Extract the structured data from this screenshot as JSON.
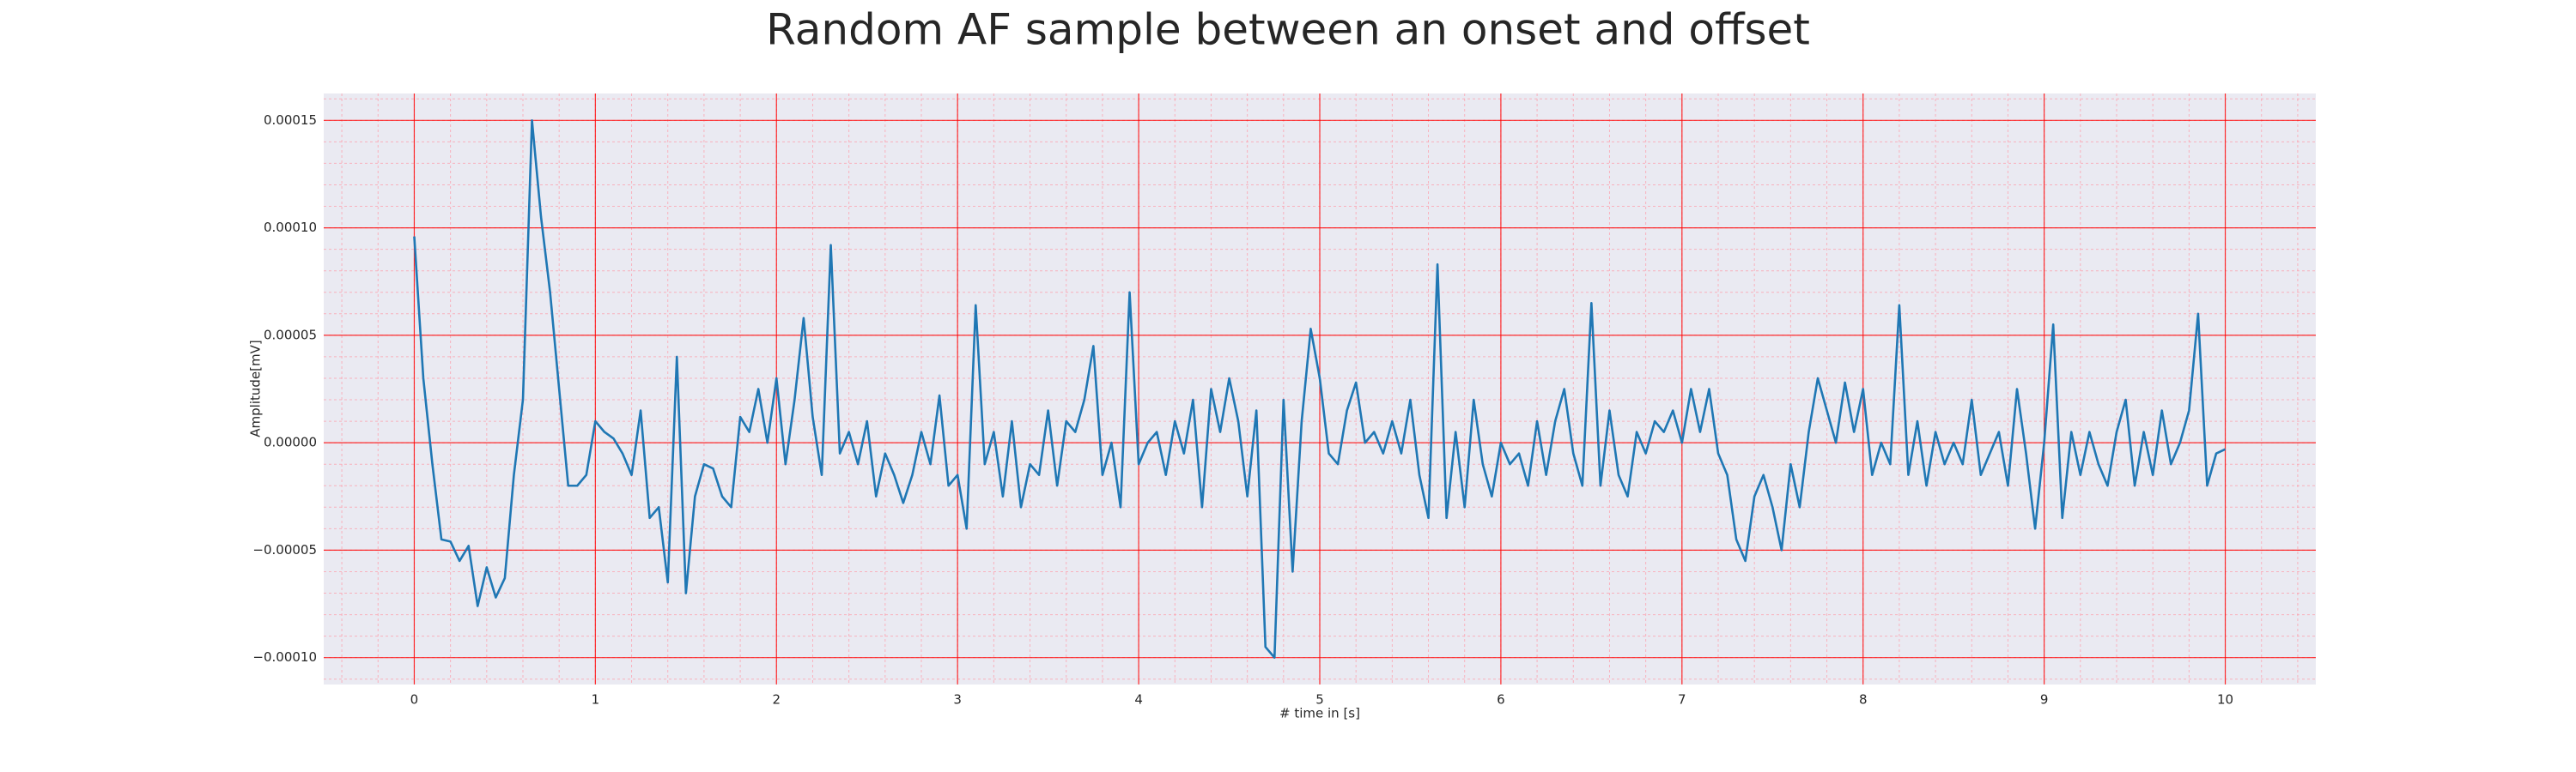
{
  "chart_data": {
    "type": "line",
    "title": "Random AF sample between an onset and offset",
    "xlabel": "# time in [s]",
    "ylabel": "Amplitude[mV]",
    "xlim": [
      -0.5,
      10.5
    ],
    "ylim": [
      -0.0001125,
      0.0001625
    ],
    "xticks": [
      0,
      1,
      2,
      3,
      4,
      5,
      6,
      7,
      8,
      9,
      10
    ],
    "yticks": [
      {
        "value": -0.0001,
        "label": "−0.00010"
      },
      {
        "value": -5e-05,
        "label": "−0.00005"
      },
      {
        "value": 0,
        "label": "0.00000"
      },
      {
        "value": 5e-05,
        "label": "0.00005"
      },
      {
        "value": 0.0001,
        "label": "0.00010"
      },
      {
        "value": 0.00015,
        "label": "0.00015"
      }
    ],
    "grid": true,
    "grid_color": "#ff0000",
    "minor_grid": true,
    "minor_grid_color": "#ff9aa8",
    "background": "#eaeaf2",
    "color": "#1f77b4",
    "x": [
      0,
      0.05,
      0.1,
      0.15,
      0.2,
      0.25,
      0.3,
      0.35,
      0.4,
      0.45,
      0.5,
      0.55,
      0.6,
      0.65,
      0.7,
      0.75,
      0.8,
      0.85,
      0.9,
      0.95,
      1,
      1.05,
      1.1,
      1.15,
      1.2,
      1.25,
      1.3,
      1.35,
      1.4,
      1.45,
      1.5,
      1.55,
      1.6,
      1.65,
      1.7,
      1.75,
      1.8,
      1.85,
      1.9,
      1.95,
      2,
      2.05,
      2.1,
      2.15,
      2.2,
      2.25,
      2.3,
      2.35,
      2.4,
      2.45,
      2.5,
      2.55,
      2.6,
      2.65,
      2.7,
      2.75,
      2.8,
      2.85,
      2.9,
      2.95,
      3,
      3.05,
      3.1,
      3.15,
      3.2,
      3.25,
      3.3,
      3.35,
      3.4,
      3.45,
      3.5,
      3.55,
      3.6,
      3.65,
      3.7,
      3.75,
      3.8,
      3.85,
      3.9,
      3.95,
      4,
      4.05,
      4.1,
      4.15,
      4.2,
      4.25,
      4.3,
      4.35,
      4.4,
      4.45,
      4.5,
      4.55,
      4.6,
      4.65,
      4.7,
      4.75,
      4.8,
      4.85,
      4.9,
      4.95,
      5,
      5.05,
      5.1,
      5.15,
      5.2,
      5.25,
      5.3,
      5.35,
      5.4,
      5.45,
      5.5,
      5.55,
      5.6,
      5.65,
      5.7,
      5.75,
      5.8,
      5.85,
      5.9,
      5.95,
      6,
      6.05,
      6.1,
      6.15,
      6.2,
      6.25,
      6.3,
      6.35,
      6.4,
      6.45,
      6.5,
      6.55,
      6.6,
      6.65,
      6.7,
      6.75,
      6.8,
      6.85,
      6.9,
      6.95,
      7,
      7.05,
      7.1,
      7.15,
      7.2,
      7.25,
      7.3,
      7.35,
      7.4,
      7.45,
      7.5,
      7.55,
      7.6,
      7.65,
      7.7,
      7.75,
      7.8,
      7.85,
      7.9,
      7.95,
      8,
      8.05,
      8.1,
      8.15,
      8.2,
      8.25,
      8.3,
      8.35,
      8.4,
      8.45,
      8.5,
      8.55,
      8.6,
      8.65,
      8.7,
      8.75,
      8.8,
      8.85,
      8.9,
      8.95,
      9,
      9.05,
      9.1,
      9.15,
      9.2,
      9.25,
      9.3,
      9.35,
      9.4,
      9.45,
      9.5,
      9.55,
      9.6,
      9.65,
      9.7,
      9.75,
      9.8,
      9.85,
      9.9,
      9.95,
      10
    ],
    "values": [
      9.6e-05,
      3e-05,
      -1e-05,
      -4.5e-05,
      -4.6e-05,
      -5.5e-05,
      -4.8e-05,
      -7.6e-05,
      -5.8e-05,
      -7.2e-05,
      -6.3e-05,
      -1.5e-05,
      2e-05,
      0.00015,
      0.000105,
      7e-05,
      2.5e-05,
      -2e-05,
      -2e-05,
      -1.5e-05,
      1e-05,
      5e-06,
      2e-06,
      -5e-06,
      -1.5e-05,
      1.5e-05,
      -3.5e-05,
      -3e-05,
      -6.5e-05,
      4e-05,
      -7e-05,
      -2.5e-05,
      -1e-05,
      -1.2e-05,
      -2.5e-05,
      -3e-05,
      1.2e-05,
      5e-06,
      2.5e-05,
      0,
      3e-05,
      -1e-05,
      2e-05,
      5.8e-05,
      1.2e-05,
      -1.5e-05,
      9.2e-05,
      -5e-06,
      5e-06,
      -1e-05,
      1e-05,
      -2.5e-05,
      -5e-06,
      -1.5e-05,
      -2.8e-05,
      -1.5e-05,
      5e-06,
      -1e-05,
      2.2e-05,
      -2e-05,
      -1.5e-05,
      -4e-05,
      6.4e-05,
      -1e-05,
      5e-06,
      -2.5e-05,
      1e-05,
      -3e-05,
      -1e-05,
      -1.5e-05,
      1.5e-05,
      -2e-05,
      1e-05,
      5e-06,
      2e-05,
      4.5e-05,
      -1.5e-05,
      0,
      -3e-05,
      7e-05,
      -1e-05,
      0,
      5e-06,
      -1.5e-05,
      1e-05,
      -5e-06,
      2e-05,
      -3e-05,
      2.5e-05,
      5e-06,
      3e-05,
      1e-05,
      -2.5e-05,
      1.5e-05,
      -9.5e-05,
      -0.0001,
      2e-05,
      -6e-05,
      1e-05,
      5.3e-05,
      3e-05,
      -5e-06,
      -1e-05,
      1.5e-05,
      2.8e-05,
      0,
      5e-06,
      -5e-06,
      1e-05,
      -5e-06,
      2e-05,
      -1.5e-05,
      -3.5e-05,
      8.3e-05,
      -3.5e-05,
      5e-06,
      -3e-05,
      2e-05,
      -1e-05,
      -2.5e-05,
      0,
      -1e-05,
      -5e-06,
      -2e-05,
      1e-05,
      -1.5e-05,
      1e-05,
      2.5e-05,
      -5e-06,
      -2e-05,
      6.5e-05,
      -2e-05,
      1.5e-05,
      -1.5e-05,
      -2.5e-05,
      5e-06,
      -5e-06,
      1e-05,
      5e-06,
      1.5e-05,
      0,
      2.5e-05,
      5e-06,
      2.5e-05,
      -5e-06,
      -1.5e-05,
      -4.5e-05,
      -5.5e-05,
      -2.5e-05,
      -1.5e-05,
      -3e-05,
      -5e-05,
      -1e-05,
      -3e-05,
      5e-06,
      3e-05,
      1.5e-05,
      0,
      2.8e-05,
      5e-06,
      2.5e-05,
      -1.5e-05,
      0,
      -1e-05,
      6.4e-05,
      -1.5e-05,
      1e-05,
      -2e-05,
      5e-06,
      -1e-05,
      0,
      -1e-05,
      2e-05,
      -1.5e-05,
      -5e-06,
      5e-06,
      -2e-05,
      2.5e-05,
      -5e-06,
      -4e-05,
      0,
      5.5e-05,
      -3.5e-05,
      5e-06,
      -1.5e-05,
      5e-06,
      -1e-05,
      -2e-05,
      5e-06,
      2e-05,
      -2e-05,
      5e-06,
      -1.5e-05,
      1.5e-05,
      -1e-05,
      0,
      1.5e-05,
      6e-05,
      -2e-05,
      -5e-06,
      -3e-06
    ]
  }
}
